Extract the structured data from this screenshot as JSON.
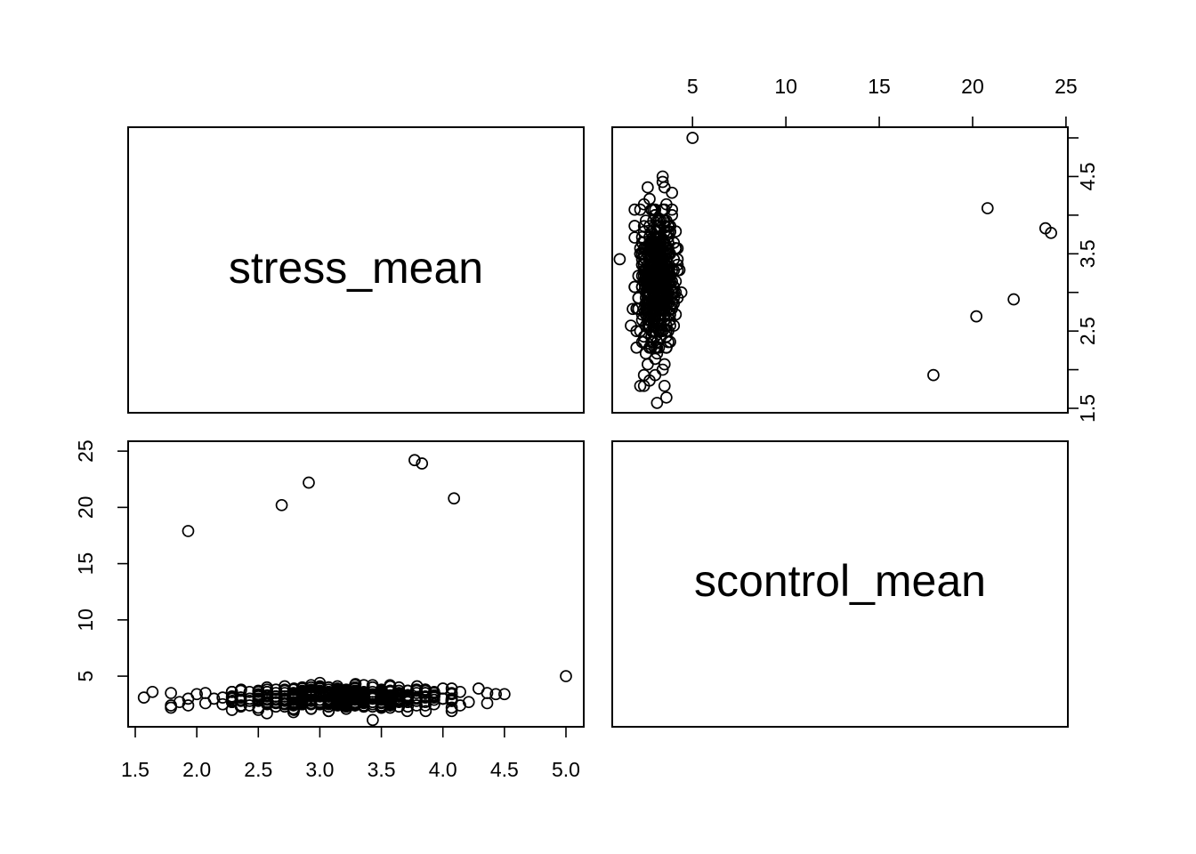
{
  "chart_data": {
    "type": "scatter",
    "layout": "pairs-matrix",
    "variables": [
      "stress_mean",
      "scontrol_mean"
    ],
    "axes": {
      "stress_mean": {
        "range": [
          1.5,
          5.0
        ],
        "ticks": [
          "1.5",
          "2.0",
          "2.5",
          "3.0",
          "3.5",
          "4.0",
          "4.5",
          "5.0"
        ]
      },
      "scontrol_mean": {
        "range": [
          1,
          25
        ],
        "ticks": [
          "5",
          "10",
          "15",
          "20",
          "25"
        ]
      }
    },
    "grid": false,
    "legend": "none",
    "points": {
      "description": "pairs of [stress_mean, scontrol_mean]",
      "values": [
        [
          5.0,
          5.0
        ],
        [
          1.93,
          17.9
        ],
        [
          2.69,
          20.2
        ],
        [
          2.91,
          22.2
        ],
        [
          3.77,
          24.2
        ],
        [
          3.83,
          23.9
        ],
        [
          4.09,
          20.8
        ],
        [
          3.43,
          1.1
        ],
        [
          1.57,
          3.1
        ],
        [
          1.64,
          3.6
        ],
        [
          1.79,
          3.5
        ],
        [
          1.79,
          2.4
        ],
        [
          1.79,
          2.2
        ],
        [
          1.86,
          2.7
        ],
        [
          1.93,
          2.4
        ],
        [
          1.93,
          3.0
        ],
        [
          2.0,
          3.4
        ],
        [
          2.07,
          3.5
        ],
        [
          2.07,
          2.6
        ],
        [
          2.14,
          3.0
        ],
        [
          2.21,
          2.5
        ],
        [
          2.21,
          3.1
        ],
        [
          2.29,
          2.8
        ],
        [
          2.36,
          3.8
        ],
        [
          2.36,
          2.4
        ],
        [
          2.43,
          3.0
        ],
        [
          2.5,
          2.0
        ],
        [
          2.5,
          3.6
        ],
        [
          2.57,
          1.7
        ],
        [
          2.57,
          4.0
        ],
        [
          2.64,
          3.2
        ],
        [
          2.71,
          2.6
        ],
        [
          2.79,
          2.0
        ],
        [
          2.79,
          3.9
        ],
        [
          2.86,
          3.3
        ],
        [
          2.93,
          2.1
        ],
        [
          3.0,
          4.0
        ],
        [
          3.07,
          2.3
        ],
        [
          3.14,
          3.5
        ],
        [
          3.21,
          2.6
        ],
        [
          3.29,
          4.3
        ],
        [
          3.36,
          3.1
        ],
        [
          3.5,
          2.2
        ],
        [
          3.57,
          4.2
        ],
        [
          3.64,
          3.0
        ],
        [
          3.71,
          1.9
        ],
        [
          3.79,
          4.1
        ],
        [
          3.86,
          1.9
        ],
        [
          3.93,
          3.3
        ],
        [
          4.0,
          3.9
        ],
        [
          4.07,
          2.8
        ],
        [
          4.14,
          2.4
        ],
        [
          4.14,
          3.6
        ],
        [
          4.21,
          2.7
        ],
        [
          4.29,
          3.9
        ],
        [
          4.36,
          3.5
        ],
        [
          4.43,
          3.4
        ],
        [
          4.5,
          3.4
        ],
        [
          4.36,
          2.6
        ]
      ],
      "dense_cluster": {
        "stress_mean_range": [
          2.3,
          4.1
        ],
        "scontrol_mean_center": 3.1,
        "scontrol_mean_spread": 0.45,
        "approx_count": 500
      }
    }
  },
  "panels": {
    "top_left_label": "stress_mean",
    "bottom_right_label": "scontrol_mean"
  }
}
